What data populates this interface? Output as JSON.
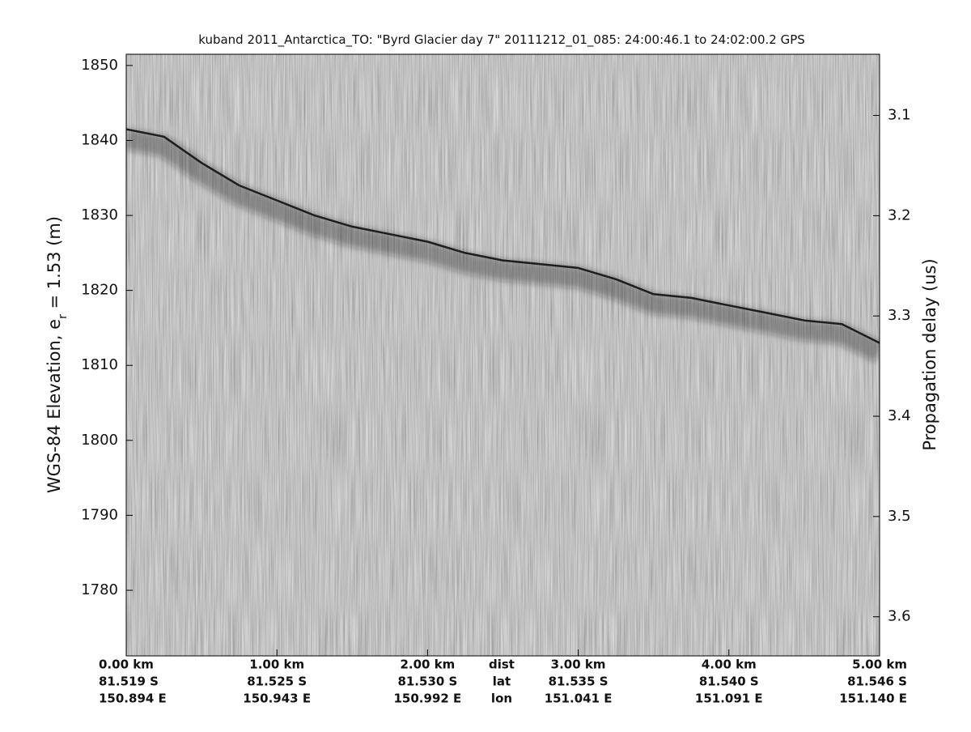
{
  "chart_data": {
    "type": "radargram",
    "title": "kuband 2011_Antarctica_TO: \"Byrd Glacier day 7\"  20111212_01_085: 24:00:46.1 to 24:02:00.2 GPS",
    "ylabel": [
      "WGS-84 Elevation, e",
      "r",
      " = 1.53 (m)"
    ],
    "y2label": "Propagation delay (us)",
    "xlim": [
      0,
      5
    ],
    "xticks": [
      {
        "value": 0,
        "label": "0.00 km"
      },
      {
        "value": 1,
        "label": "1.00 km"
      },
      {
        "value": 2,
        "label": "2.00 km"
      },
      {
        "value": 3,
        "label": "3.00 km"
      },
      {
        "value": 4,
        "label": "4.00 km"
      },
      {
        "value": 5,
        "label": "5.00 km"
      }
    ],
    "xtick_lat": [
      "81.519 S",
      "81.525 S",
      "81.530 S",
      "81.535 S",
      "81.540 S",
      "81.546 S"
    ],
    "xtick_lon": [
      "150.894 E",
      "150.943 E",
      "150.992 E",
      "151.041 E",
      "151.091 E",
      "151.140 E"
    ],
    "x_rows": [
      "dist",
      "lat",
      "lon"
    ],
    "ylim": [
      1771.25,
      1851.5
    ],
    "yticks": [
      1780,
      1790,
      1800,
      1810,
      1820,
      1830,
      1840,
      1850
    ],
    "y2lim": [
      3.639,
      3.039
    ],
    "y2ticks": [
      3.1,
      3.2,
      3.3,
      3.4,
      3.5,
      3.6
    ],
    "surface": {
      "color": "#1e1e1e",
      "x": [
        0,
        0.25,
        0.5,
        0.75,
        1,
        1.25,
        1.5,
        1.75,
        2,
        2.25,
        2.5,
        2.75,
        3,
        3.25,
        3.5,
        3.75,
        4,
        4.25,
        4.5,
        4.75,
        5
      ],
      "values": [
        1841.5,
        1840.5,
        1837,
        1834,
        1832,
        1830,
        1828.5,
        1827.5,
        1826.5,
        1825,
        1824,
        1823.5,
        1823,
        1821.5,
        1819.5,
        1819,
        1818,
        1817,
        1816,
        1815.5,
        1813
      ]
    }
  }
}
